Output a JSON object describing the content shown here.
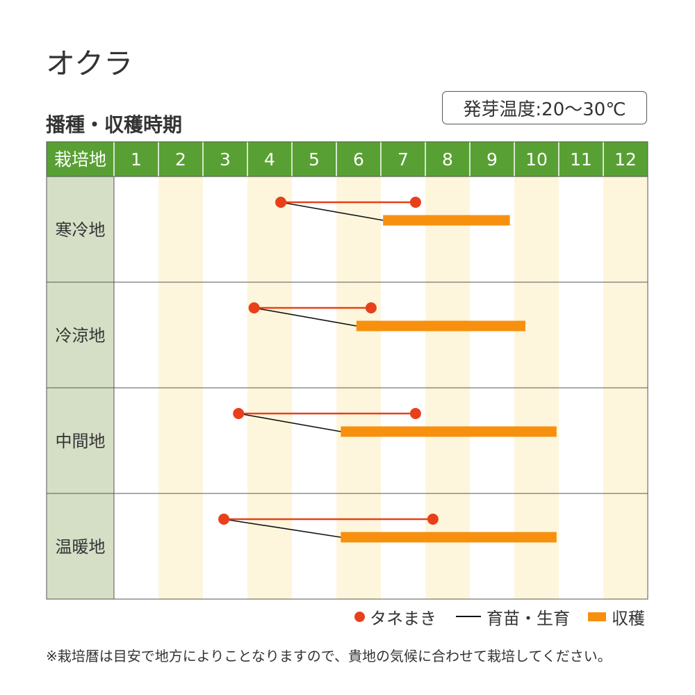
{
  "title": "オクラ",
  "subtitle": "播種・収穫時期",
  "temp_label": "発芽温度:20〜30℃",
  "note": "※栽培暦は目安で地方によりことなりますので、貴地の気候に合わせて栽培してください。",
  "legend": {
    "sowing": "タネまき",
    "nursery": "育苗・生育",
    "harvest": "収穫"
  },
  "colors": {
    "header_green": "#58A033",
    "region_bg": "#D5DFC6",
    "band": "#FDF6DC",
    "sowing": "#E8401A",
    "harvest": "#F7900E",
    "nursery": "#111111"
  },
  "chart_data": {
    "type": "gantt",
    "header_label": "栽培地",
    "months": [
      "1",
      "2",
      "3",
      "4",
      "5",
      "6",
      "7",
      "8",
      "9",
      "10",
      "11",
      "12"
    ],
    "x_range": [
      1,
      13
    ],
    "regions": [
      {
        "name": "寒冷地",
        "sowing": [
          4.75,
          7.78
        ],
        "harvest": [
          7.05,
          9.9
        ]
      },
      {
        "name": "冷涼地",
        "sowing": [
          4.15,
          6.78
        ],
        "harvest": [
          6.45,
          10.25
        ]
      },
      {
        "name": "中間地",
        "sowing": [
          3.8,
          7.78
        ],
        "harvest": [
          6.1,
          10.95
        ]
      },
      {
        "name": "温暖地",
        "sowing": [
          3.47,
          8.17
        ],
        "harvest": [
          6.1,
          10.95
        ]
      }
    ]
  }
}
